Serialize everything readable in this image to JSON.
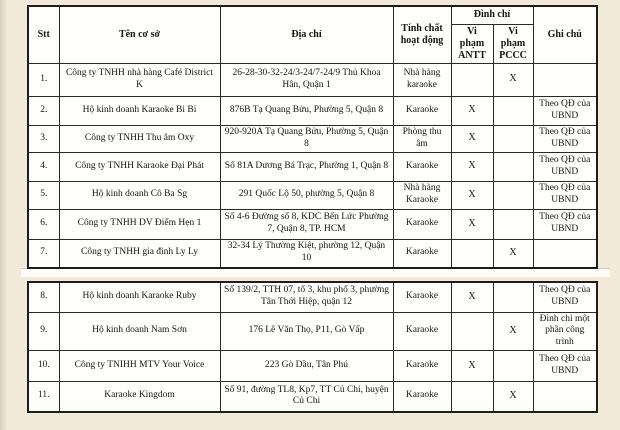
{
  "page": {
    "background": "#f1ead8",
    "paper": "#fefefb",
    "border_color": "#2a2926",
    "text_color": "#151412"
  },
  "table": {
    "headers": {
      "stt": "Stt",
      "name": "Tên cơ sở",
      "address": "Địa chỉ",
      "activity": "Tính chất hoạt động",
      "suspension": "Đình chỉ",
      "antt": "Vi phạm ANTT",
      "pccc": "Vi phạm PCCC",
      "note": "Ghi chú"
    },
    "sections": [
      {
        "rows": [
          {
            "stt": "1.",
            "name": "Công ty TNHH nhà hàng Café District K",
            "address": "26-28-30-32-24/3-24/7-24/9 Thủ Khoa Hân, Quận 1",
            "activity": "Nhà hàng karaoke",
            "antt": "",
            "pccc": "X",
            "note": ""
          },
          {
            "stt": "2.",
            "name": "Hộ kinh doanh Karaoke Bi Bi",
            "address": "876B Tạ Quang Bửu, Phường 5, Quận 8",
            "activity": "Karaoke",
            "antt": "X",
            "pccc": "",
            "note": "Theo QĐ của UBND"
          },
          {
            "stt": "3.",
            "name": "Công ty TNHH Thu âm Oxy",
            "address": "920-920A Tạ Quang Bửu, Phường 5, Quận 8",
            "activity": "Phòng thu âm",
            "antt": "X",
            "pccc": "",
            "note": "Theo QĐ của UBND"
          },
          {
            "stt": "4.",
            "name": "Công ty TNHH Karaoke Đại Phát",
            "address": "Số 81A Dương Bá Trạc, Phường 1, Quận 8",
            "activity": "Karaoke",
            "antt": "X",
            "pccc": "",
            "note": "Theo QĐ của UBND"
          },
          {
            "stt": "5.",
            "name": "Hộ kinh doanh Cô Ba Sg",
            "address": "291 Quốc Lộ 50, phường 5, Quận 8",
            "activity": "Nhà hàng Karaoke",
            "antt": "X",
            "pccc": "",
            "note": "Theo QĐ của UBND"
          },
          {
            "stt": "6.",
            "name": "Công ty TNHH DV Điểm Hẹn 1",
            "address": "Số 4-6 Đường số 8, KDC Bến Lức Phường 7, Quận 8, TP. HCM",
            "activity": "Karaoke",
            "antt": "X",
            "pccc": "",
            "note": "Theo QĐ của UBND"
          },
          {
            "stt": "7.",
            "name": "Công ty TNHH gia đình Ly Ly",
            "address": "32-34 Lý Thường Kiệt, phường 12, Quận 10",
            "activity": "Karaoke",
            "antt": "",
            "pccc": "X",
            "note": ""
          }
        ]
      },
      {
        "rows": [
          {
            "stt": "8.",
            "name": "Hộ kinh doanh Karaoke Ruby",
            "address": "Số 139/2, TTH 07, tổ 3, khu phố 3, phường Tân Thới Hiệp, quận 12",
            "activity": "Karaoke",
            "antt": "X",
            "pccc": "",
            "note": "Theo QĐ của UBND"
          },
          {
            "stt": "9.",
            "name": "Hộ kinh doanh Nam Sơn",
            "address": "176 Lê Văn Thọ, P11, Gò Vấp",
            "activity": "Karaoke",
            "antt": "",
            "pccc": "X",
            "note": "Đình chỉ một phần công trình"
          },
          {
            "stt": "10.",
            "name": "Công ty TNIHH MTV Your Voice",
            "address": "223 Gò Dầu, Tân Phú",
            "activity": "Karaoke",
            "antt": "X",
            "pccc": "",
            "note": "Theo QĐ của UBND"
          },
          {
            "stt": "11.",
            "name": "Karaoke Kingdom",
            "address": "Số 91, đường TL8, Kp7, TT Củ Chi, huyện Củ Chi",
            "activity": "Karaoke",
            "antt": "",
            "pccc": "X",
            "note": ""
          }
        ]
      }
    ]
  }
}
